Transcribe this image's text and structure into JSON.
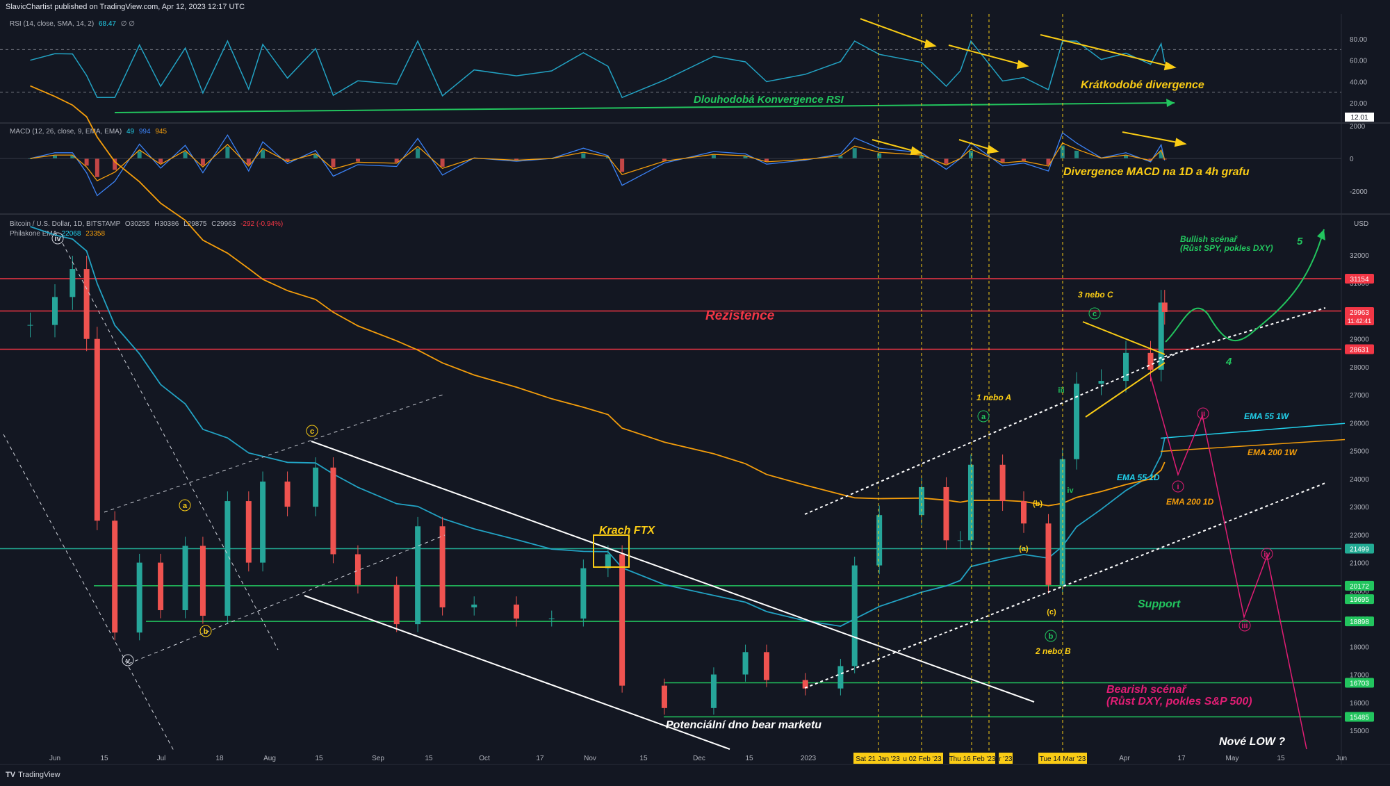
{
  "header": {
    "text": "SlavicChartist published on TradingView.com, Apr 12, 2023 12:17 UTC"
  },
  "footer": {
    "logo": "TV",
    "brand": "TradingView"
  },
  "panes": {
    "rsi": {
      "title": "RSI (14, close, SMA, 14, 2)",
      "value": "68.47",
      "extra": "∅ ∅",
      "axis": [
        "80.00",
        "60.00",
        "40.00",
        "20.00"
      ],
      "last_label": "12.01"
    },
    "macd": {
      "title": "MACD (12, 26, close, 9, EMA, EMA)",
      "v1": "49",
      "v2": "994",
      "v3": "945",
      "axis": [
        "2000",
        "0",
        "-2000"
      ]
    },
    "price": {
      "title": "Bitcoin / U.S. Dollar, 1D, BITSTAMP",
      "ohlc": {
        "o": "O30255",
        "h": "H30386",
        "l": "L29875",
        "c": "C29963",
        "chg": "-292 (-0.94%)"
      },
      "ema_title": "Philakone EMA",
      "ema1": "22068",
      "ema2": "23358",
      "currency": "USD"
    }
  },
  "price_axis": {
    "ticks": [
      "32000",
      "31000",
      "30000",
      "29000",
      "28000",
      "27000",
      "26000",
      "25000",
      "24000",
      "23000",
      "22000",
      "21000",
      "20000",
      "19000",
      "18000",
      "17000",
      "16000",
      "15000"
    ],
    "badges": [
      {
        "text": "31154",
        "color": "#f23645",
        "value": 31154
      },
      {
        "text": "29963",
        "color": "#f23645",
        "value": 29963,
        "sub": "11:42:41"
      },
      {
        "text": "28631",
        "color": "#f23645",
        "value": 28631
      },
      {
        "text": "21499",
        "color": "#22ab94",
        "value": 21499
      },
      {
        "text": "20172",
        "color": "#22c55e",
        "value": 20172
      },
      {
        "text": "19695",
        "color": "#22c55e",
        "value": 19695
      },
      {
        "text": "18898",
        "color": "#22c55e",
        "value": 18898
      },
      {
        "text": "16703",
        "color": "#22c55e",
        "value": 16703
      },
      {
        "text": "15485",
        "color": "#22c55e",
        "value": 15485
      }
    ]
  },
  "time_axis": {
    "labels": [
      "Jun",
      "15",
      "Jul",
      "18",
      "Aug",
      "15",
      "Sep",
      "15",
      "Oct",
      "17",
      "Nov",
      "15",
      "Dec",
      "15",
      "2023",
      "Feb",
      "Mar",
      "Apr",
      "17",
      "May",
      "15",
      "Jun"
    ],
    "date_badges": [
      "Sat 21 Jan '23",
      "u 02 Feb '23",
      "Thu 16 Feb '23",
      "r '23",
      "Tue 14 Mar '23"
    ]
  },
  "annotations": {
    "rsi_convergence": "Dlouhodobá Konvergence RSI",
    "rsi_divergence": "Krátkodobé divergence",
    "macd_divergence": "Divergence MACD na 1D a 4h grafu",
    "resistance": "Rezistence",
    "support": "Support",
    "krach": "Krach FTX",
    "bottom": "Potenciální dno bear marketu",
    "bullish": "Bullish scénař",
    "bullish_sub": "(Růst SPY, pokles DXY)",
    "bearish": "Bearish scénař",
    "bearish_sub": "(Růst DXY, pokles S&P 500)",
    "ema55w": "EMA 55 1W",
    "ema200w": "EMA 200 1W",
    "ema55d": "EMA 55 1D",
    "ema200d": "EMA 200 1D",
    "one_or_a": "1 nebo A",
    "two_or_b": "2 nebo B",
    "three_or_c": "3 nebo C",
    "new_low": "Nové LOW ?",
    "wave4": "4",
    "wave5": "5"
  },
  "chart_data": {
    "type": "candlestick",
    "title": "Bitcoin / U.S. Dollar, 1D, BITSTAMP",
    "ylim": [
      14500,
      33200
    ],
    "x_range": [
      "2022-05-25",
      "2023-06-06"
    ],
    "series": [
      {
        "name": "BTC/USD",
        "points": [
          [
            "2022-05-25",
            29500
          ],
          [
            "2022-06-01",
            30500
          ],
          [
            "2022-06-06",
            31500
          ],
          [
            "2022-06-10",
            29000
          ],
          [
            "2022-06-13",
            22500
          ],
          [
            "2022-06-18",
            18500
          ],
          [
            "2022-06-25",
            21000
          ],
          [
            "2022-07-01",
            19300
          ],
          [
            "2022-07-08",
            21600
          ],
          [
            "2022-07-13",
            19100
          ],
          [
            "2022-07-20",
            23200
          ],
          [
            "2022-07-26",
            21000
          ],
          [
            "2022-07-30",
            23900
          ],
          [
            "2022-08-06",
            23000
          ],
          [
            "2022-08-14",
            24400
          ],
          [
            "2022-08-19",
            21300
          ],
          [
            "2022-08-26",
            20200
          ],
          [
            "2022-09-06",
            18800
          ],
          [
            "2022-09-12",
            22300
          ],
          [
            "2022-09-19",
            19400
          ],
          [
            "2022-09-28",
            19500
          ],
          [
            "2022-10-10",
            19000
          ],
          [
            "2022-10-20",
            19000
          ],
          [
            "2022-10-29",
            20800
          ],
          [
            "2022-11-05",
            21300
          ],
          [
            "2022-11-09",
            16600
          ],
          [
            "2022-11-21",
            15800
          ],
          [
            "2022-12-05",
            17000
          ],
          [
            "2022-12-14",
            17800
          ],
          [
            "2022-12-20",
            16800
          ],
          [
            "2022-12-31",
            16500
          ],
          [
            "2023-01-10",
            17300
          ],
          [
            "2023-01-14",
            20900
          ],
          [
            "2023-01-21",
            22700
          ],
          [
            "2023-02-02",
            23700
          ],
          [
            "2023-02-09",
            21800
          ],
          [
            "2023-02-13",
            21800
          ],
          [
            "2023-02-16",
            24500
          ],
          [
            "2023-02-25",
            23200
          ],
          [
            "2023-03-03",
            22400
          ],
          [
            "2023-03-10",
            20200
          ],
          [
            "2023-03-14",
            24700
          ],
          [
            "2023-03-18",
            27400
          ],
          [
            "2023-03-25",
            27500
          ],
          [
            "2023-04-01",
            28500
          ],
          [
            "2023-04-08",
            27900
          ],
          [
            "2023-04-11",
            30300
          ],
          [
            "2023-04-12",
            29963
          ]
        ]
      }
    ],
    "horizontal_levels": [
      31154,
      30000,
      28631,
      21499,
      20172,
      18898,
      16703,
      15485
    ],
    "indicators": [
      "EMA 55 1D",
      "EMA 200 1D",
      "EMA 55 1W",
      "EMA 200 1W"
    ]
  }
}
